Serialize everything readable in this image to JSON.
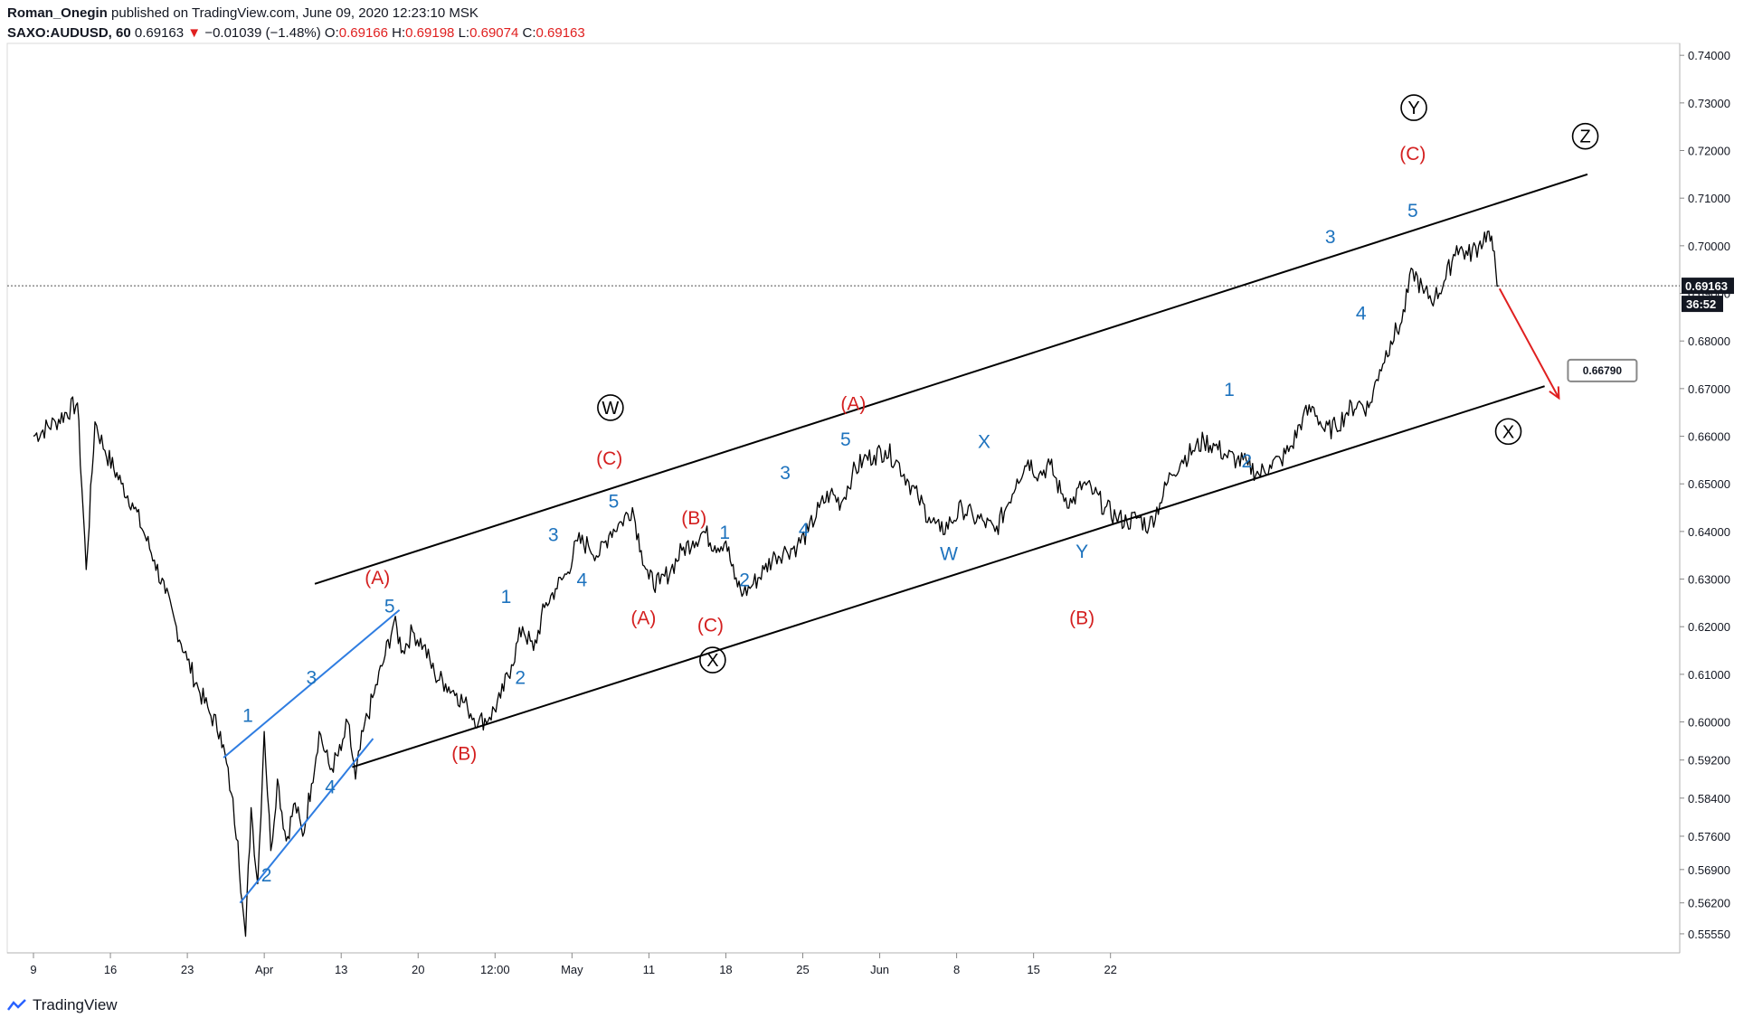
{
  "header": {
    "author": "Roman_Onegin",
    "published": "published on TradingView.com, June 09, 2020 12:23:10 MSK",
    "symbol": "SAXO:AUDUSD, 60",
    "last": "0.69163",
    "change_arrow": "▼",
    "change": "−0.01039 (−1.48%)",
    "o_label": "O:",
    "o": "0.69166",
    "h_label": "H:",
    "h": "0.69198",
    "l_label": "L:",
    "l": "0.69074",
    "c_label": "C:",
    "c": "0.69163"
  },
  "footer": {
    "brand": "TradingView",
    "logo_icon": "tradingview-logo-icon"
  },
  "colors": {
    "negative": "#e02020",
    "wave_blue": "#1e73be",
    "wave_red": "#d42020",
    "channel": "#000000",
    "price": "#000000"
  },
  "chart_data": {
    "type": "line",
    "title": "SAXO:AUDUSD, 60",
    "xlabel": "",
    "ylabel": "",
    "ylim": [
      0.5515,
      0.7425
    ],
    "price_tag": "0.69163",
    "countdown": "36:52",
    "target_tag": "0.66790",
    "x_ticks": [
      "9",
      "16",
      "23",
      "Apr",
      "13",
      "20",
      "12:00",
      "May",
      "11",
      "18",
      "25",
      "Jun",
      "8",
      "15",
      "22"
    ],
    "y_ticks": [
      "0.74000",
      "0.73000",
      "0.72000",
      "0.71000",
      "0.70000",
      "0.69000",
      "0.68000",
      "0.67000",
      "0.66000",
      "0.65000",
      "0.64000",
      "0.63000",
      "0.62000",
      "0.61000",
      "0.60000",
      "0.59200",
      "0.58400",
      "0.57600",
      "0.56900",
      "0.56200",
      "0.55550"
    ],
    "y_tick_values": [
      0.74,
      0.73,
      0.72,
      0.71,
      0.7,
      0.69,
      0.68,
      0.67,
      0.66,
      0.65,
      0.64,
      0.63,
      0.62,
      0.61,
      0.6,
      0.592,
      0.584,
      0.576,
      0.569,
      0.562,
      0.5555
    ],
    "price_points": [
      [
        0,
        0.66
      ],
      [
        2,
        0.663
      ],
      [
        4,
        0.667
      ],
      [
        4.8,
        0.632
      ],
      [
        5.6,
        0.663
      ],
      [
        6.5,
        0.657
      ],
      [
        8,
        0.65
      ],
      [
        9,
        0.646
      ],
      [
        10,
        0.64
      ],
      [
        11,
        0.634
      ],
      [
        12,
        0.627
      ],
      [
        13,
        0.62
      ],
      [
        14,
        0.613
      ],
      [
        15,
        0.607
      ],
      [
        16,
        0.602
      ],
      [
        17,
        0.598
      ],
      [
        18,
        0.585
      ],
      [
        18.6,
        0.575
      ],
      [
        19,
        0.562
      ],
      [
        19.3,
        0.555
      ],
      [
        19.8,
        0.582
      ],
      [
        20.4,
        0.566
      ],
      [
        21,
        0.598
      ],
      [
        21.6,
        0.573
      ],
      [
        22.2,
        0.588
      ],
      [
        23,
        0.575
      ],
      [
        23.8,
        0.583
      ],
      [
        24.5,
        0.576
      ],
      [
        25.3,
        0.587
      ],
      [
        26,
        0.598
      ],
      [
        27,
        0.59
      ],
      [
        28,
        0.594
      ],
      [
        28.6,
        0.6
      ],
      [
        29.3,
        0.588
      ],
      [
        30,
        0.598
      ],
      [
        31,
        0.606
      ],
      [
        32,
        0.614
      ],
      [
        32.8,
        0.621
      ],
      [
        33.6,
        0.615
      ],
      [
        34.5,
        0.619
      ],
      [
        35.5,
        0.616
      ],
      [
        36.5,
        0.61
      ],
      [
        37.5,
        0.608
      ],
      [
        38.5,
        0.606
      ],
      [
        39.5,
        0.603
      ],
      [
        40.5,
        0.6
      ],
      [
        41.5,
        0.601
      ],
      [
        42.5,
        0.605
      ],
      [
        43.5,
        0.612
      ],
      [
        44.5,
        0.62
      ],
      [
        45.5,
        0.615
      ],
      [
        46.5,
        0.624
      ],
      [
        47.5,
        0.628
      ],
      [
        48.5,
        0.631
      ],
      [
        49.5,
        0.638
      ],
      [
        50.5,
        0.637
      ],
      [
        51.5,
        0.635
      ],
      [
        52.5,
        0.64
      ],
      [
        53.5,
        0.642
      ],
      [
        54.5,
        0.645
      ],
      [
        55.3,
        0.636
      ],
      [
        56,
        0.63
      ],
      [
        57,
        0.629
      ],
      [
        58,
        0.632
      ],
      [
        59,
        0.636
      ],
      [
        60,
        0.638
      ],
      [
        61,
        0.64
      ],
      [
        62,
        0.637
      ],
      [
        63,
        0.638
      ],
      [
        63.8,
        0.63
      ],
      [
        64.6,
        0.627
      ],
      [
        65.5,
        0.629
      ],
      [
        66.5,
        0.632
      ],
      [
        67.5,
        0.635
      ],
      [
        68.5,
        0.636
      ],
      [
        69.5,
        0.637
      ],
      [
        70.5,
        0.64
      ],
      [
        71.5,
        0.645
      ],
      [
        72.5,
        0.648
      ],
      [
        73.5,
        0.646
      ],
      [
        74.5,
        0.652
      ],
      [
        75.5,
        0.655
      ],
      [
        76.5,
        0.656
      ],
      [
        77.5,
        0.657
      ],
      [
        78.5,
        0.655
      ],
      [
        79.5,
        0.651
      ],
      [
        80.5,
        0.647
      ],
      [
        81.5,
        0.643
      ],
      [
        82.5,
        0.64
      ],
      [
        83.5,
        0.642
      ],
      [
        84.5,
        0.645
      ],
      [
        85.5,
        0.643
      ],
      [
        86.5,
        0.642
      ],
      [
        87.5,
        0.64
      ],
      [
        88.5,
        0.645
      ],
      [
        89.5,
        0.651
      ],
      [
        90.5,
        0.655
      ],
      [
        91.5,
        0.652
      ],
      [
        92.5,
        0.654
      ],
      [
        93.5,
        0.648
      ],
      [
        94.5,
        0.646
      ],
      [
        95.5,
        0.65
      ],
      [
        96.5,
        0.648
      ],
      [
        97.5,
        0.645
      ],
      [
        98.5,
        0.643
      ],
      [
        99.5,
        0.642
      ],
      [
        100.5,
        0.643
      ],
      [
        101.5,
        0.641
      ],
      [
        102.5,
        0.646
      ],
      [
        103.5,
        0.652
      ],
      [
        104.5,
        0.655
      ],
      [
        105.5,
        0.657
      ],
      [
        106.5,
        0.659
      ],
      [
        107.5,
        0.658
      ],
      [
        108.5,
        0.656
      ],
      [
        109.5,
        0.655
      ],
      [
        110.5,
        0.654
      ],
      [
        111.5,
        0.652
      ],
      [
        112.5,
        0.654
      ],
      [
        113.5,
        0.655
      ],
      [
        114.5,
        0.658
      ],
      [
        115.5,
        0.664
      ],
      [
        116.5,
        0.666
      ],
      [
        117.5,
        0.661
      ],
      [
        118.5,
        0.662
      ],
      [
        119.5,
        0.665
      ],
      [
        120.5,
        0.667
      ],
      [
        121.5,
        0.666
      ],
      [
        122.5,
        0.674
      ],
      [
        123.5,
        0.68
      ],
      [
        124.5,
        0.684
      ],
      [
        125.5,
        0.695
      ],
      [
        126.5,
        0.69
      ],
      [
        127.5,
        0.689
      ],
      [
        128.5,
        0.693
      ],
      [
        129.5,
        0.7
      ],
      [
        130.5,
        0.698
      ],
      [
        131.5,
        0.7
      ],
      [
        132.3,
        0.703
      ],
      [
        132.8,
        0.699
      ],
      [
        133.3,
        0.6916
      ]
    ],
    "annotations": [
      {
        "text": "1",
        "color": "blue",
        "x": 19.5,
        "y": 0.6
      },
      {
        "text": "2",
        "color": "blue",
        "x": 21.2,
        "y": 0.5665
      },
      {
        "text": "3",
        "color": "blue",
        "x": 25.3,
        "y": 0.608
      },
      {
        "text": "4",
        "color": "blue",
        "x": 27.0,
        "y": 0.585
      },
      {
        "text": "5",
        "color": "blue",
        "x": 32.4,
        "y": 0.623
      },
      {
        "text": "(A)",
        "color": "red",
        "x": 31.3,
        "y": 0.629
      },
      {
        "text": "(B)",
        "color": "red",
        "x": 39.2,
        "y": 0.592
      },
      {
        "text": "1",
        "color": "blue",
        "x": 43.0,
        "y": 0.625
      },
      {
        "text": "2",
        "color": "blue",
        "x": 44.3,
        "y": 0.608
      },
      {
        "text": "3",
        "color": "blue",
        "x": 47.3,
        "y": 0.638
      },
      {
        "text": "4",
        "color": "blue",
        "x": 49.9,
        "y": 0.6285
      },
      {
        "text": "5",
        "color": "blue",
        "x": 52.8,
        "y": 0.645
      },
      {
        "text": "(C)",
        "color": "red",
        "x": 52.4,
        "y": 0.654
      },
      {
        "text": "(A)",
        "color": "red",
        "x": 55.5,
        "y": 0.6205
      },
      {
        "text": "(B)",
        "color": "red",
        "x": 60.1,
        "y": 0.6415
      },
      {
        "text": "1",
        "color": "blue",
        "x": 62.9,
        "y": 0.6385
      },
      {
        "text": "2",
        "color": "blue",
        "x": 64.7,
        "y": 0.6285
      },
      {
        "text": "(C)",
        "color": "red",
        "x": 61.6,
        "y": 0.619
      },
      {
        "text": "3",
        "color": "blue",
        "x": 68.4,
        "y": 0.651
      },
      {
        "text": "4",
        "color": "blue",
        "x": 70.1,
        "y": 0.639
      },
      {
        "text": "5",
        "color": "blue",
        "x": 73.9,
        "y": 0.658
      },
      {
        "text": "(A)",
        "color": "red",
        "x": 74.6,
        "y": 0.6655
      },
      {
        "text": "W",
        "color": "blue",
        "x": 83.3,
        "y": 0.634
      },
      {
        "text": "X",
        "color": "blue",
        "x": 86.5,
        "y": 0.6575
      },
      {
        "text": "Y",
        "color": "blue",
        "x": 95.4,
        "y": 0.6345
      },
      {
        "text": "(B)",
        "color": "red",
        "x": 95.4,
        "y": 0.6205
      },
      {
        "text": "1",
        "color": "blue",
        "x": 108.8,
        "y": 0.6685
      },
      {
        "text": "2",
        "color": "blue",
        "x": 110.4,
        "y": 0.6535
      },
      {
        "text": "3",
        "color": "blue",
        "x": 118.0,
        "y": 0.7005
      },
      {
        "text": "4",
        "color": "blue",
        "x": 120.8,
        "y": 0.6845
      },
      {
        "text": "5",
        "color": "blue",
        "x": 125.5,
        "y": 0.706
      },
      {
        "text": "(C)",
        "color": "red",
        "x": 125.5,
        "y": 0.718
      }
    ],
    "circled": [
      {
        "text": "W",
        "x": 52.5,
        "y": 0.666
      },
      {
        "text": "X",
        "x": 61.8,
        "y": 0.613
      },
      {
        "text": "Y",
        "x": 125.6,
        "y": 0.729
      },
      {
        "text": "Z",
        "x": 141.2,
        "y": 0.723
      },
      {
        "text": "X",
        "x": 134.2,
        "y": 0.661
      }
    ],
    "channel_upper": [
      [
        25.6,
        0.629
      ],
      [
        141.4,
        0.715
      ]
    ],
    "channel_lower": [
      [
        29.0,
        0.5905
      ],
      [
        137.5,
        0.6705
      ]
    ],
    "wedge_upper": [
      [
        17.3,
        0.5925
      ],
      [
        33.3,
        0.6235
      ]
    ],
    "wedge_lower": [
      [
        18.8,
        0.562
      ],
      [
        30.9,
        0.5965
      ]
    ],
    "target_arrow": [
      [
        133.4,
        0.691
      ],
      [
        138.8,
        0.668
      ]
    ]
  }
}
